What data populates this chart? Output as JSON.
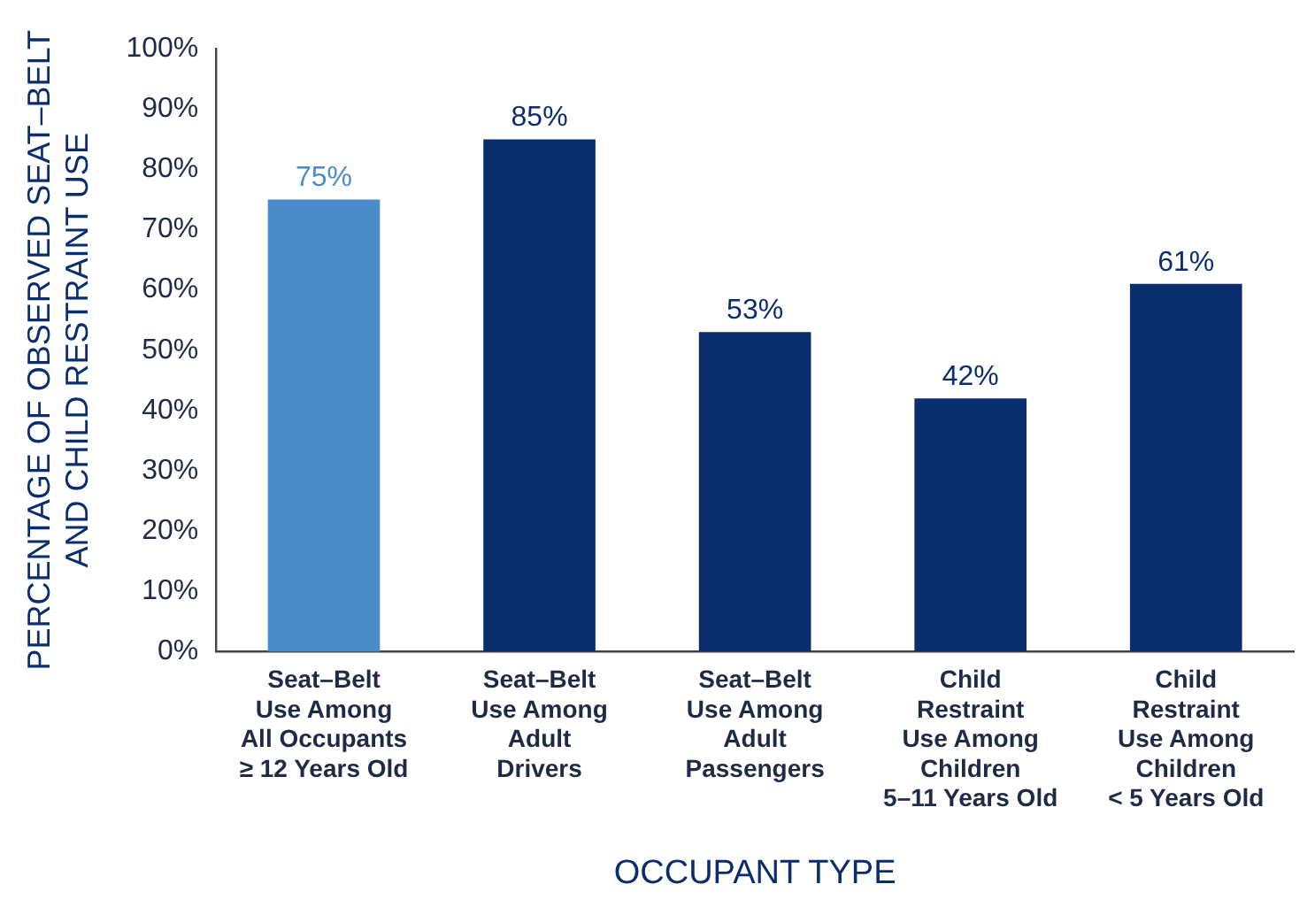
{
  "chart_data": {
    "type": "bar",
    "xlabel": "OCCUPANT TYPE",
    "ylabel": "PERCENTAGE OF OBSERVED SEAT–BELT\nAND CHILD RESTRAINT USE",
    "categories": [
      "Seat–Belt\nUse Among\nAll Occupants\n≥ 12 Years Old",
      "Seat–Belt\nUse Among\nAdult\nDrivers",
      "Seat–Belt\nUse Among\nAdult\nPassengers",
      "Child\nRestraint\nUse Among\nChildren\n5–11 Years Old",
      "Child\nRestraint\nUse Among\nChildren\n< 5 Years Old"
    ],
    "values": [
      75,
      85,
      53,
      42,
      61
    ],
    "colors": [
      "#4a8cc8",
      "#0a2d6e",
      "#0a2d6e",
      "#0a2d6e",
      "#0a2d6e"
    ],
    "value_labels": [
      "75%",
      "85%",
      "53%",
      "42%",
      "61%"
    ],
    "ylim": [
      0,
      100
    ],
    "yticks": [
      {
        "value": 0,
        "label": "0%"
      },
      {
        "value": 10,
        "label": "10%"
      },
      {
        "value": 20,
        "label": "20%"
      },
      {
        "value": 30,
        "label": "30%"
      },
      {
        "value": 40,
        "label": "40%"
      },
      {
        "value": 50,
        "label": "50%"
      },
      {
        "value": 60,
        "label": "60%"
      },
      {
        "value": 70,
        "label": "70%"
      },
      {
        "value": 80,
        "label": "80%"
      },
      {
        "value": 90,
        "label": "90%"
      },
      {
        "value": 100,
        "label": "100%"
      }
    ],
    "grid": false,
    "legend": false
  }
}
